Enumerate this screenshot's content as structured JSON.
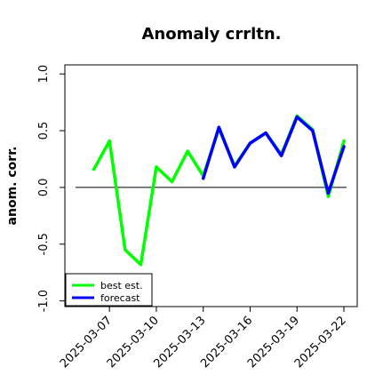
{
  "chart_data": {
    "type": "line",
    "title": "Anomaly crrltn.",
    "xlabel": "",
    "ylabel": "anom. corr.",
    "ylim": [
      -1.05,
      1.08
    ],
    "xlim": [
      "2025-03-05",
      "2025-03-22"
    ],
    "yticks": [
      -1.0,
      -0.5,
      0.0,
      0.5,
      1.0
    ],
    "ytick_labels": [
      "-1.0",
      "-0.5",
      "0.0",
      "0.5",
      "1.0"
    ],
    "xticks": [
      "2025-03-07",
      "2025-03-10",
      "2025-03-13",
      "2025-03-16",
      "2025-03-19",
      "2025-03-22"
    ],
    "xtick_labels": [
      "2025-03-07",
      "2025-03-10",
      "2025-03-13",
      "2025-03-16",
      "2025-03-19",
      "2025-03-22"
    ],
    "highlighted_xtick": "2025-03-13",
    "highlight_color": "#228b22",
    "reference_line_y": 0.0,
    "grid": false,
    "legend_position": "bottom-left",
    "series": [
      {
        "name": "best est.",
        "color": "#00ff00",
        "x": [
          "2025-03-06",
          "2025-03-07",
          "2025-03-08",
          "2025-03-09",
          "2025-03-10",
          "2025-03-11",
          "2025-03-12",
          "2025-03-13",
          "2025-03-14",
          "2025-03-15",
          "2025-03-16",
          "2025-03-17",
          "2025-03-18",
          "2025-03-19",
          "2025-03-20",
          "2025-03-21",
          "2025-03-22"
        ],
        "y": [
          0.16,
          0.41,
          -0.55,
          -0.68,
          0.18,
          0.05,
          0.32,
          0.1,
          0.52,
          0.19,
          0.39,
          0.48,
          0.29,
          0.63,
          0.51,
          -0.08,
          0.41
        ]
      },
      {
        "name": "forecast",
        "color": "#0000ff",
        "x": [
          "2025-03-13",
          "2025-03-14",
          "2025-03-15",
          "2025-03-16",
          "2025-03-17",
          "2025-03-18",
          "2025-03-19",
          "2025-03-20",
          "2025-03-21",
          "2025-03-22"
        ],
        "y": [
          0.08,
          0.53,
          0.18,
          0.39,
          0.48,
          0.28,
          0.62,
          0.5,
          -0.05,
          0.36
        ]
      }
    ]
  }
}
